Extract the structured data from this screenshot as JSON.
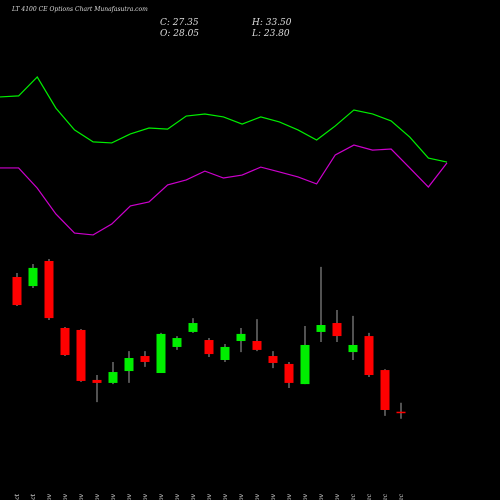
{
  "chart_data": {
    "type": "candlestick",
    "title": "LT 4100 CE Options Chart Munafasutra.com",
    "annotations": [
      "C: 27.35",
      "H: 33.50",
      "O: 28.05",
      "L: 23.80"
    ],
    "categories": [
      "30 Oct",
      "31 Oct",
      "03 Nov",
      "04 Nov",
      "06 Nov",
      "07 Nov",
      "10 Nov",
      "11 Nov",
      "12 Nov",
      "13 Nov",
      "14 Nov",
      "17 Nov",
      "18 Nov",
      "19 Nov",
      "20 Nov",
      "21 Nov",
      "24 Nov",
      "25 Nov",
      "26 Nov",
      "27 Nov",
      "28 Nov",
      "01 Dec",
      "02 Dec",
      "03 Dec",
      "04 Dec"
    ],
    "open": [
      109.7,
      104.2,
      119.4,
      78.8,
      77.6,
      47.3,
      45.5,
      52.7,
      61.8,
      51.5,
      67.3,
      76.4,
      71.5,
      59.4,
      70.9,
      70.9,
      61.8,
      57.0,
      44.8,
      76.4,
      81.8,
      64.2,
      73.9,
      53.3,
      28.05
    ],
    "high": [
      112.1,
      117.6,
      120.6,
      79.4,
      78.2,
      50.3,
      58.2,
      64.8,
      64.8,
      75.8,
      73.9,
      84.8,
      72.7,
      69.1,
      78.8,
      84.2,
      64.8,
      58.2,
      80.0,
      115.8,
      89.7,
      86.1,
      75.8,
      53.9,
      33.5
    ],
    "low": [
      92.1,
      103.0,
      83.6,
      61.8,
      46.1,
      33.9,
      44.8,
      45.5,
      55.2,
      51.5,
      65.5,
      75.8,
      61.2,
      58.2,
      64.2,
      64.8,
      54.5,
      42.4,
      44.8,
      70.3,
      70.3,
      59.4,
      49.1,
      25.5,
      23.8
    ],
    "close": [
      92.7,
      115.2,
      84.8,
      62.4,
      46.7,
      45.5,
      52.1,
      60.6,
      58.2,
      75.2,
      72.7,
      81.8,
      63.0,
      67.3,
      75.2,
      65.5,
      57.6,
      45.5,
      68.5,
      80.6,
      73.9,
      68.5,
      50.3,
      29.1,
      27.35
    ],
    "up_color": "#00ee00",
    "down_color": "#ff0000",
    "ylim": [
      0,
      130
    ],
    "series": [
      {
        "color": "#00ee00",
        "axis": "y2",
        "values": [
          82.4,
          82.9,
          91.9,
          77.1,
          66.7,
          61.0,
          60.5,
          64.8,
          67.6,
          67.1,
          73.3,
          74.3,
          72.9,
          69.5,
          72.9,
          70.5,
          66.7,
          61.9,
          68.6,
          76.2,
          74.3,
          71.0,
          63.3,
          53.3,
          51.4
        ]
      },
      {
        "color": "#cc00cc",
        "axis": "y2",
        "values": [
          48.6,
          48.6,
          39.0,
          26.7,
          17.6,
          16.7,
          21.9,
          30.5,
          32.4,
          40.5,
          42.9,
          47.1,
          43.8,
          45.2,
          49.0,
          46.7,
          44.3,
          41.0,
          54.8,
          59.5,
          57.1,
          57.6,
          48.6,
          39.5,
          51.0
        ]
      }
    ],
    "y2lim": [
      0,
      100
    ]
  }
}
